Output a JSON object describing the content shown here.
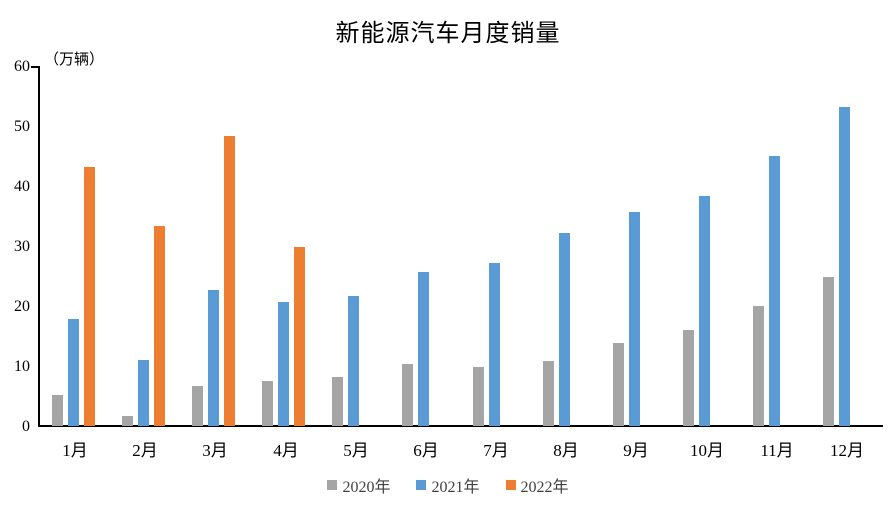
{
  "chart_data": {
    "type": "bar",
    "title": "新能源汽车月度销量",
    "unit_label": "（万辆）",
    "categories": [
      "1月",
      "2月",
      "3月",
      "4月",
      "5月",
      "6月",
      "7月",
      "8月",
      "9月",
      "10月",
      "11月",
      "12月"
    ],
    "series": [
      {
        "name": "2020年",
        "color": "#A5A5A5",
        "values": [
          5.2,
          1.6,
          6.6,
          7.5,
          8.2,
          10.4,
          9.8,
          10.9,
          13.8,
          16.0,
          20.0,
          24.8
        ]
      },
      {
        "name": "2021年",
        "color": "#5B9BD5",
        "values": [
          17.9,
          11.0,
          22.6,
          20.6,
          21.7,
          25.6,
          27.1,
          32.1,
          35.7,
          38.3,
          45.0,
          53.1
        ]
      },
      {
        "name": "2022年",
        "color": "#ED7D31",
        "values": [
          43.1,
          33.4,
          48.4,
          29.9,
          null,
          null,
          null,
          null,
          null,
          null,
          null,
          null
        ]
      }
    ],
    "xlabel": "",
    "ylabel": "（万辆）",
    "ylim": [
      0,
      60
    ],
    "y_ticks": [
      0,
      10,
      20,
      30,
      40,
      50,
      60
    ],
    "grid": false,
    "legend_position": "bottom",
    "axis_color": "#000000",
    "background_color": "#FFFFFF"
  }
}
